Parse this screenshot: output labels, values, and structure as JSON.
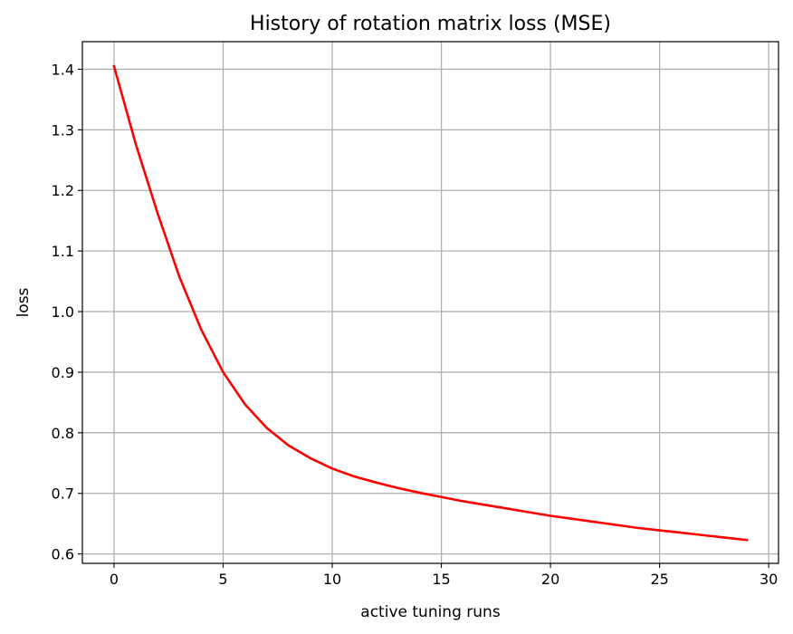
{
  "chart_data": {
    "type": "line",
    "title": "History of rotation matrix loss (MSE)",
    "xlabel": "active tuning runs",
    "ylabel": "loss",
    "xlim": [
      -1.45,
      30.45
    ],
    "ylim": [
      0.5845,
      1.4455
    ],
    "grid": true,
    "x_ticks": [
      0,
      5,
      10,
      15,
      20,
      25,
      30
    ],
    "y_ticks": [
      0.6,
      0.7,
      0.8,
      0.9,
      1.0,
      1.1,
      1.2,
      1.3,
      1.4
    ],
    "x_tick_labels": [
      "0",
      "5",
      "10",
      "15",
      "20",
      "25",
      "30"
    ],
    "y_tick_labels": [
      "0.6",
      "0.7",
      "0.8",
      "0.9",
      "1.0",
      "1.1",
      "1.2",
      "1.3",
      "1.4"
    ],
    "series": [
      {
        "color": "#ff0000",
        "x": [
          0,
          1,
          2,
          3,
          4,
          5,
          6,
          7,
          8,
          9,
          10,
          11,
          12,
          13,
          14,
          15,
          16,
          17,
          18,
          19,
          20,
          21,
          22,
          23,
          24,
          25,
          26,
          27,
          28,
          29
        ],
        "values": [
          1.405,
          1.276,
          1.162,
          1.057,
          0.97,
          0.9,
          0.847,
          0.808,
          0.779,
          0.758,
          0.741,
          0.728,
          0.718,
          0.709,
          0.701,
          0.694,
          0.687,
          0.681,
          0.675,
          0.669,
          0.663,
          0.658,
          0.653,
          0.648,
          0.643,
          0.639,
          0.635,
          0.631,
          0.627,
          0.623
        ]
      }
    ]
  }
}
